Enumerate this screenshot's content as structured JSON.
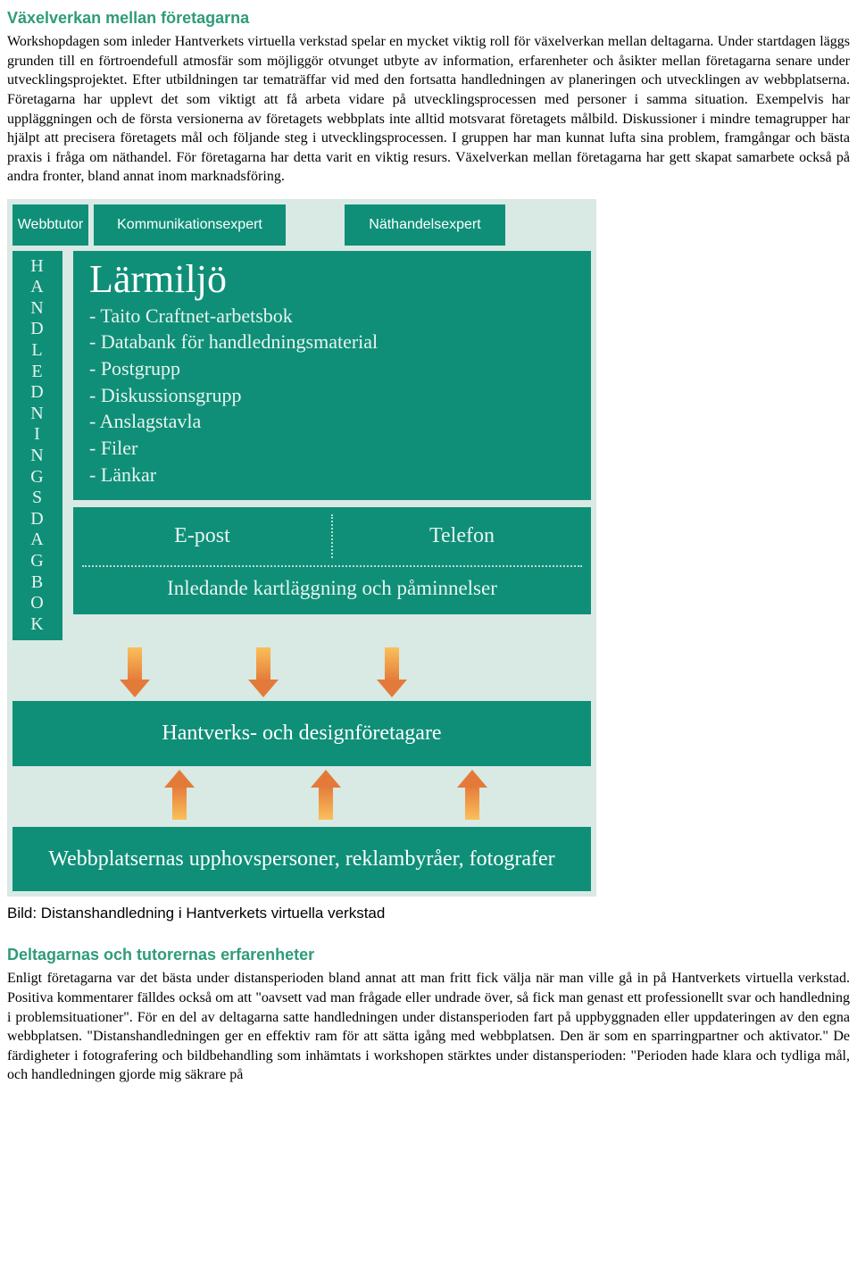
{
  "section1": {
    "heading": "Växelverkan mellan företagarna",
    "body": "Workshopdagen som inleder Hantverkets virtuella verkstad spelar en mycket viktig roll för växelverkan mellan deltagarna. Under startdagen läggs grunden till en förtroendefull atmosfär som möjliggör otvunget utbyte av information, erfarenheter och åsikter mellan företagarna senare under utvecklingsprojektet. Efter utbildningen tar tematräffar vid med den fortsatta handledningen av planeringen och utvecklingen av webbplatserna. Företagarna har upplevt det som viktigt att få arbeta vidare på utvecklingsprocessen med personer i samma situation. Exempelvis har uppläggningen och de första versionerna av företagets webbplats inte alltid motsvarat företagets målbild. Diskussioner i mindre temagrupper har hjälpt att precisera företagets mål och följande steg i utvecklingsprocessen. I gruppen har man kunnat lufta sina problem, framgångar och bästa praxis i fråga om näthandel. För företagarna har detta varit en viktig resurs. Växelverkan mellan företagarna har gett skapat samarbete också på andra fronter, bland annat inom marknadsföring."
  },
  "diagram": {
    "colors": {
      "panel_bg": "#d9e9e4",
      "box_bg": "#0f8f78",
      "box_text": "#ffffff",
      "box_text_soft": "#e8f4f0",
      "dotted": "#b9ddd3",
      "arrow_top": "#fbbf5a",
      "arrow_bottom": "#e47a3a"
    },
    "top": {
      "b1": "Webbtutor",
      "b2": "Kommunikationsexpert",
      "b3": "Näthandelsexpert"
    },
    "vertical_label": "HANDLEDNINGSDAGBOK",
    "larmiljo": {
      "title": "Lärmiljö",
      "items": [
        "- Taito Craftnet-arbetsbok",
        "- Databank för handledningsmaterial",
        "- Postgrupp",
        "- Diskussionsgrupp",
        "- Anslagstavla",
        "- Filer",
        "- Länkar"
      ]
    },
    "epost": "E-post",
    "telefon": "Telefon",
    "inledande": "Inledande kartläggning och påminnelser",
    "middle_box": "Hantverks- och designföretagare",
    "bottom_box": "Webbplatsernas upphovspersoner, reklambyråer, fotografer"
  },
  "caption": "Bild: Distanshandledning i Hantverkets virtuella verkstad",
  "section2": {
    "heading": "Deltagarnas och tutorernas erfarenheter",
    "body": "Enligt företagarna var det bästa under distansperioden bland annat att man fritt fick välja när man ville gå in på Hantverkets virtuella verkstad. Positiva kommentarer fälldes också om att \"oavsett vad man frågade eller undrade över, så fick man genast ett professionellt svar och handledning i problemsituationer\". För en del av deltagarna satte handledningen under distansperioden fart på uppbyggnaden eller uppdateringen av den egna webbplatsen. \"Distanshandledningen ger en effektiv ram för att sätta igång med webbplatsen. Den är som en sparringpartner och aktivator.\" De färdigheter i fotografering och bildbehandling som inhämtats i workshopen stärktes under distansperioden: \"Perioden hade klara och tydliga mål, och handledningen gjorde mig säkrare på"
  }
}
